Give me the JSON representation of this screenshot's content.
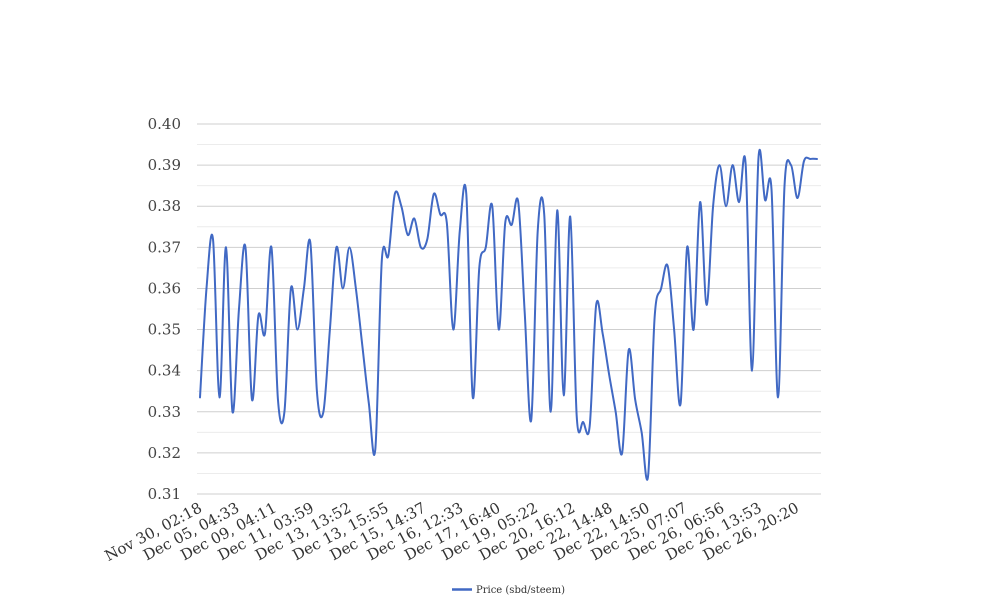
{
  "chart_data": {
    "type": "line",
    "title": "",
    "xlabel": "",
    "ylabel": "",
    "ylim": [
      0.31,
      0.4
    ],
    "yticks": [
      "0.31",
      "0.32",
      "0.33",
      "0.34",
      "0.35",
      "0.36",
      "0.37",
      "0.38",
      "0.39",
      "0.40"
    ],
    "x_tick_labels": [
      "Nov 30, 02:18",
      "Dec 05, 04:33",
      "Dec 09, 04:11",
      "Dec 11, 03:59",
      "Dec 13, 13:52",
      "Dec 13, 15:55",
      "Dec 15, 14:37",
      "Dec 16, 12:33",
      "Dec 17, 16:40",
      "Dec 19, 05:22",
      "Dec 20, 16:12",
      "Dec 22, 14:48",
      "Dec 22, 14:50",
      "Dec 25, 07:07",
      "Dec 26, 06:56",
      "Dec 26, 13:53",
      "Dec 26, 20:20"
    ],
    "grid": true,
    "legend_position": "bottom",
    "series": [
      {
        "name": "Price (sbd/steem)",
        "color": "#4169c4",
        "values": [
          0.3335,
          0.36,
          0.372,
          0.3335,
          0.37,
          0.33,
          0.355,
          0.37,
          0.333,
          0.3535,
          0.349,
          0.37,
          0.333,
          0.33,
          0.36,
          0.35,
          0.36,
          0.371,
          0.335,
          0.33,
          0.35,
          0.37,
          0.36,
          0.37,
          0.36,
          0.346,
          0.332,
          0.321,
          0.367,
          0.368,
          0.383,
          0.38,
          0.373,
          0.377,
          0.37,
          0.372,
          0.383,
          0.378,
          0.376,
          0.35,
          0.374,
          0.383,
          0.3335,
          0.365,
          0.37,
          0.38,
          0.35,
          0.376,
          0.3755,
          0.381,
          0.354,
          0.328,
          0.374,
          0.378,
          0.33,
          0.379,
          0.334,
          0.3775,
          0.329,
          0.3275,
          0.3265,
          0.356,
          0.349,
          0.339,
          0.33,
          0.32,
          0.345,
          0.333,
          0.325,
          0.3145,
          0.353,
          0.36,
          0.3655,
          0.35,
          0.332,
          0.37,
          0.35,
          0.381,
          0.356,
          0.38,
          0.39,
          0.38,
          0.39,
          0.381,
          0.3905,
          0.34,
          0.392,
          0.3815,
          0.384,
          0.3335,
          0.385,
          0.39,
          0.382,
          0.391,
          0.3915,
          0.3915
        ]
      }
    ]
  }
}
